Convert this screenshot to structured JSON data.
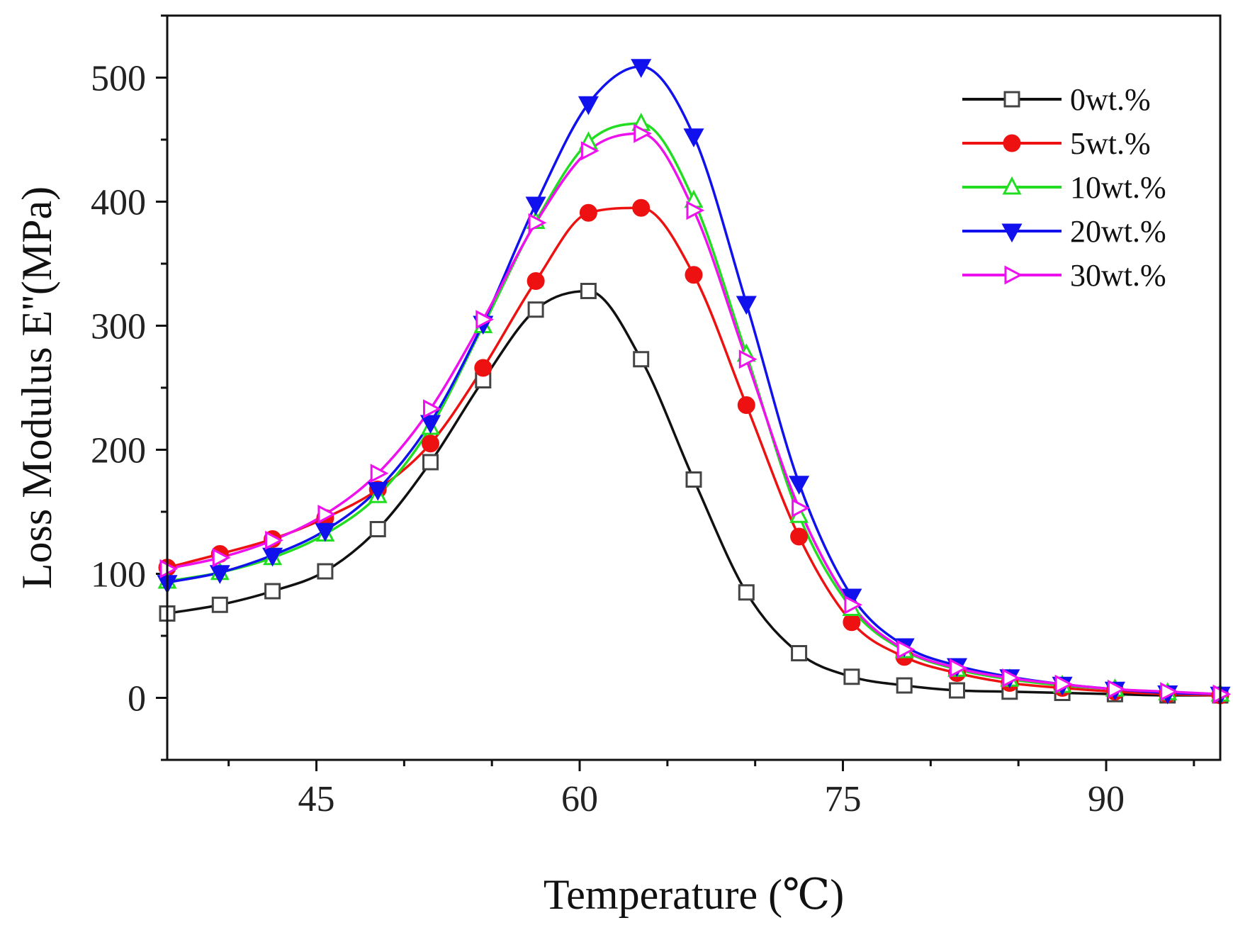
{
  "chart_data": {
    "type": "line",
    "title": "",
    "xlabel": "Temperature (℃)",
    "ylabel": "Loss Modulus E''(MPa)",
    "xlim": [
      36.5,
      96.5
    ],
    "ylim": [
      -50,
      550
    ],
    "xticks": [
      45,
      60,
      75,
      90
    ],
    "yticks": [
      0,
      100,
      200,
      300,
      400,
      500
    ],
    "legend_position": "top-right",
    "series": [
      {
        "name": "0wt.%",
        "color": "#111111",
        "marker": "square-open",
        "x": [
          36.5,
          39.5,
          42.5,
          45.5,
          48.5,
          51.5,
          54.5,
          57.5,
          60.5,
          63.5,
          66.5,
          69.5,
          72.5,
          75.5,
          78.5,
          81.5,
          84.5,
          87.5,
          90.5,
          93.5,
          96.5
        ],
        "values": [
          68,
          75,
          86,
          102,
          136,
          190,
          256,
          313,
          328,
          273,
          176,
          85,
          36,
          17,
          10,
          6,
          5,
          4,
          3,
          2,
          2
        ]
      },
      {
        "name": "5wt.%",
        "color": "#ee1111",
        "marker": "circle-filled",
        "x": [
          36.5,
          39.5,
          42.5,
          45.5,
          48.5,
          51.5,
          54.5,
          57.5,
          60.5,
          63.5,
          66.5,
          69.5,
          72.5,
          75.5,
          78.5,
          81.5,
          84.5,
          87.5,
          90.5,
          93.5,
          96.5
        ],
        "values": [
          105,
          116,
          128,
          145,
          168,
          205,
          266,
          336,
          391,
          395,
          341,
          236,
          130,
          61,
          33,
          20,
          12,
          8,
          5,
          3,
          2
        ]
      },
      {
        "name": "10wt.%",
        "color": "#22dd22",
        "marker": "triangle-up-open",
        "x": [
          36.5,
          39.5,
          42.5,
          45.5,
          48.5,
          51.5,
          54.5,
          57.5,
          60.5,
          63.5,
          66.5,
          69.5,
          72.5,
          75.5,
          78.5,
          81.5,
          84.5,
          87.5,
          90.5,
          93.5,
          96.5
        ],
        "values": [
          94,
          101,
          113,
          132,
          163,
          218,
          300,
          384,
          448,
          463,
          401,
          277,
          147,
          72,
          38,
          23,
          15,
          10,
          7,
          4,
          3
        ]
      },
      {
        "name": "20wt.%",
        "color": "#1111ee",
        "marker": "triangle-down-filled",
        "x": [
          36.5,
          39.5,
          42.5,
          45.5,
          48.5,
          51.5,
          54.5,
          57.5,
          60.5,
          63.5,
          66.5,
          69.5,
          72.5,
          75.5,
          78.5,
          81.5,
          84.5,
          87.5,
          90.5,
          93.5,
          96.5
        ],
        "values": [
          93,
          101,
          115,
          135,
          168,
          222,
          302,
          398,
          479,
          509,
          453,
          318,
          173,
          82,
          42,
          26,
          17,
          11,
          7,
          4,
          3
        ]
      },
      {
        "name": "30wt.%",
        "color": "#ee11ee",
        "marker": "triangle-right-open",
        "x": [
          36.5,
          39.5,
          42.5,
          45.5,
          48.5,
          51.5,
          54.5,
          57.5,
          60.5,
          63.5,
          66.5,
          69.5,
          72.5,
          75.5,
          78.5,
          81.5,
          84.5,
          87.5,
          90.5,
          93.5,
          96.5
        ],
        "values": [
          104,
          113,
          127,
          148,
          181,
          233,
          305,
          383,
          441,
          455,
          393,
          273,
          153,
          75,
          39,
          24,
          16,
          11,
          7,
          5,
          3
        ]
      }
    ]
  }
}
